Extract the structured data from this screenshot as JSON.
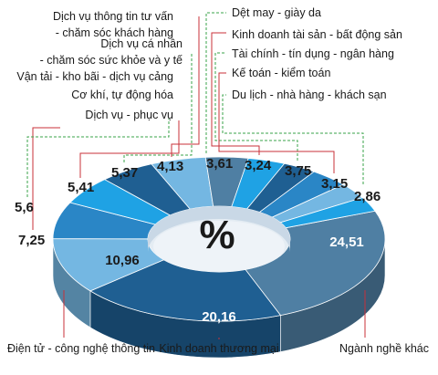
{
  "chart_data": {
    "type": "pie",
    "center_label": "%",
    "slices": [
      {
        "label": "Ngành nghề khác",
        "value": 24.51
      },
      {
        "label": "Kinh doanh thương mại",
        "value": 20.16
      },
      {
        "label": "Điện tử - công nghệ thông tin",
        "value": 10.96
      },
      {
        "label": "Vận tải - kho bãi - dịch vụ cảng",
        "value": 7.25
      },
      {
        "label": "Cơ khí, tự động hóa",
        "value": 5.6
      },
      {
        "label": "Dịch vụ - phục vụ",
        "value": 5.41
      },
      {
        "label": "Dịch vụ thông tin tư vấn - chăm sóc khách hàng",
        "value": 5.37
      },
      {
        "label": "Dịch vụ cá nhân - chăm sóc sức khỏe và y tế",
        "value": 4.13
      },
      {
        "label": "Dệt may - giày da",
        "value": 3.61
      },
      {
        "label": "Kinh doanh tài sản - bất động sản",
        "value": 3.24
      },
      {
        "label": "Tài chính - tín dụng - ngân hàng",
        "value": 3.75
      },
      {
        "label": "Kế toán - kiểm toán",
        "value": 3.15
      },
      {
        "label": "Du lịch - nhà hàng - khách sạn",
        "value": 2.86
      }
    ],
    "value_labels": {
      "Ngành nghề khác": "24,51",
      "Kinh doanh thương mại": "20,16",
      "Điện tử - công nghệ thông tin": "10,96",
      "Vận tải - kho bãi - dịch vụ cảng": "7,25",
      "Cơ khí, tự động hóa": "5,6",
      "Dịch vụ - phục vụ": "5,41",
      "Dịch vụ thông tin tư vấn - chăm sóc khách hàng": "5,37",
      "Dịch vụ cá nhân - chăm sóc sức khỏe và y tế": "4,13",
      "Dệt may - giày da": "3,61",
      "Kinh doanh tài sản - bất động sản": "3,24",
      "Tài chính - tín dụng - ngân hàng": "3,75",
      "Kế toán - kiểm toán": "3,15",
      "Du lịch - nhà hàng - khách sạn": "2,86"
    },
    "label_lines": {
      "Dịch vụ thông tin tư vấn - chăm sóc khách hàng": [
        "Dịch vụ thông tin tư vấn",
        "- chăm sóc khách hàng"
      ],
      "Dịch vụ cá nhân - chăm sóc sức khỏe và y tế": [
        "Dịch vụ cá nhân",
        "- chăm sóc sức khỏe và y tế"
      ]
    },
    "colors": {
      "dark_blue": "#1f5f92",
      "mid_blue": "#2a86c6",
      "light_blue": "#74b7e2",
      "steel": "#4f7fa3",
      "bright": "#1fa2e4",
      "red_leader": "#c8323a",
      "green_leader": "#3aa34a"
    }
  }
}
